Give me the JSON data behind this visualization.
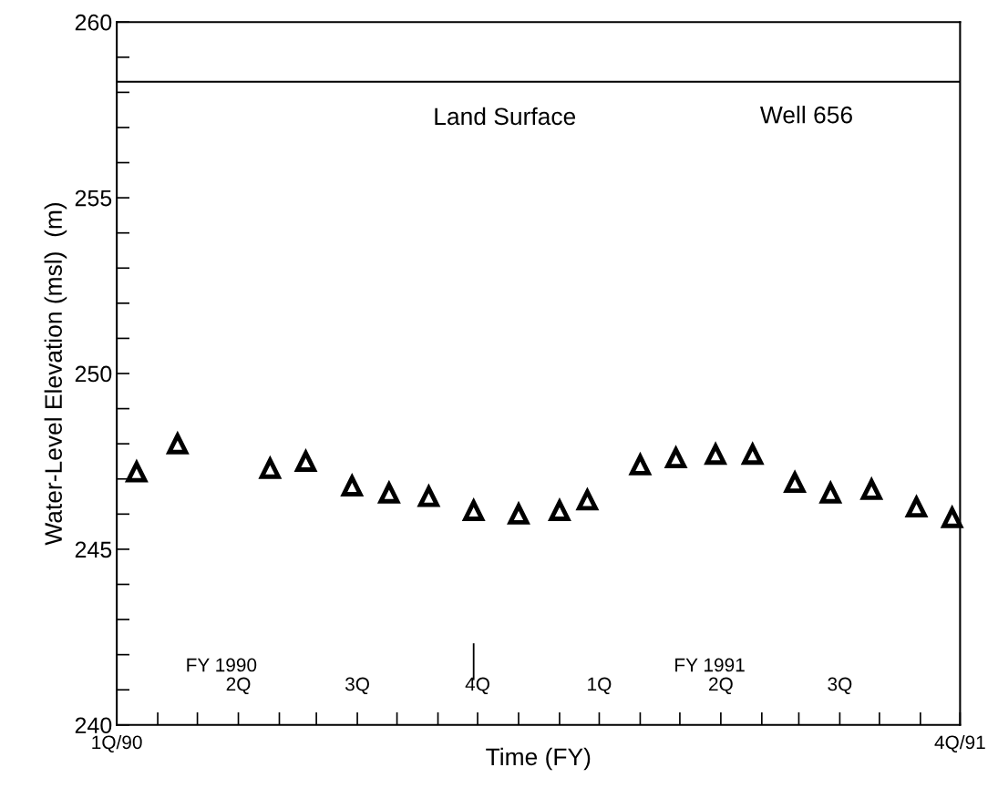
{
  "chart_data": {
    "type": "scatter",
    "xlabel": "Time (FY)",
    "ylabel": "Water-Level Elevation (msl)  (m)",
    "xlim": [
      "1989-10-01",
      "1991-07-01"
    ],
    "ylim": [
      240,
      260
    ],
    "xticks": [
      {
        "value": "1989-10-01",
        "label": "1Q/90"
      },
      {
        "value": "1989-11-01",
        "label": null
      },
      {
        "value": "1989-12-01",
        "label": null
      },
      {
        "value": "1990-01-01",
        "label": null
      },
      {
        "value": "1990-02-01",
        "label": null
      },
      {
        "value": "1990-03-01",
        "label": null
      },
      {
        "value": "1990-04-01",
        "label": null
      },
      {
        "value": "1990-05-01",
        "label": null
      },
      {
        "value": "1990-06-01",
        "label": null
      },
      {
        "value": "1990-07-01",
        "label": null
      },
      {
        "value": "1990-08-01",
        "label": null
      },
      {
        "value": "1990-09-01",
        "label": null
      },
      {
        "value": "1990-10-01",
        "label": null
      },
      {
        "value": "1990-11-01",
        "label": null
      },
      {
        "value": "1990-12-01",
        "label": null
      },
      {
        "value": "1991-01-01",
        "label": null
      },
      {
        "value": "1991-02-01",
        "label": null
      },
      {
        "value": "1991-03-01",
        "label": null
      },
      {
        "value": "1991-04-01",
        "label": null
      },
      {
        "value": "1991-05-01",
        "label": null
      },
      {
        "value": "1991-06-01",
        "label": null
      },
      {
        "value": "1991-07-01",
        "label": "4Q/91"
      }
    ],
    "x2lim": [
      "1989-10-01",
      "1991-07-01"
    ],
    "x2ticks": [
      {
        "value": "1990-01-01",
        "label": "2Q"
      },
      {
        "value": "1990-04-01",
        "label": "3Q"
      },
      {
        "value": "1990-07-01",
        "label": "4Q"
      },
      {
        "value": "1990-10-01",
        "label": "1Q"
      },
      {
        "value": "1991-01-01",
        "label": "2Q"
      },
      {
        "value": "1991-04-01",
        "label": "3Q"
      }
    ],
    "yticks": [
      240,
      {
        "value": 241,
        "label": null
      },
      {
        "value": 242,
        "label": null
      },
      {
        "value": 243,
        "label": null
      },
      {
        "value": 244,
        "label": null
      },
      245,
      {
        "value": 246,
        "label": null
      },
      {
        "value": 247,
        "label": null
      },
      {
        "value": 248,
        "label": null
      },
      {
        "value": 249,
        "label": null
      },
      250,
      {
        "value": 251,
        "label": null
      },
      {
        "value": 252,
        "label": null
      },
      {
        "value": 253,
        "label": null
      },
      {
        "value": 254,
        "label": null
      },
      255,
      {
        "value": 256,
        "label": null
      },
      {
        "value": 257,
        "label": null
      },
      {
        "value": 258,
        "label": null
      },
      {
        "value": 259,
        "label": null
      },
      260
    ],
    "marker": "triangle",
    "grid": false,
    "legend": false,
    "series": [
      {
        "color": "#000000",
        "x": [
          "1989-10-16",
          "1989-11-16",
          "1990-01-25",
          "1990-02-21",
          "1990-03-28",
          "1990-04-25",
          "1990-05-25",
          "1990-06-28",
          "1990-08-01",
          "1990-09-01",
          "1990-09-22",
          "1990-11-01",
          "1990-11-28",
          "1990-12-28",
          "1991-01-25",
          "1991-02-26",
          "1991-03-25",
          "1991-04-25",
          "1991-05-29",
          "1991-06-25"
        ],
        "values": [
          247.2,
          248.0,
          247.3,
          247.5,
          246.8,
          246.6,
          246.5,
          246.1,
          246.0,
          246.1,
          246.4,
          247.4,
          247.6,
          247.7,
          247.7,
          246.9,
          246.6,
          246.7,
          246.2,
          245.9
        ]
      },
      {
        "type": "line",
        "marker": "none",
        "color": "#000000",
        "x": [
          "1990-06-28",
          "1990-06-28"
        ],
        "values": [
          241.3,
          242.3
        ]
      }
    ],
    "ref_lines": [
      {
        "axis": "y",
        "value": 258.3,
        "label": "Land Surface",
        "color": "#000000",
        "line_style": "solid"
      }
    ],
    "annotations": [
      "Well 656",
      "FY 1990",
      "FY 1991"
    ]
  }
}
